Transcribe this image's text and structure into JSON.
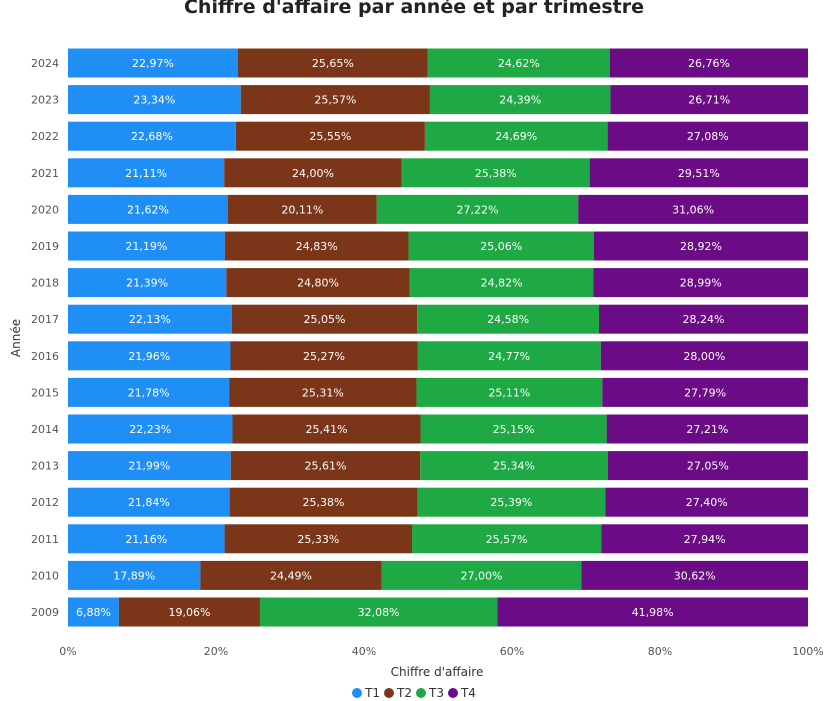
{
  "chart_data": {
    "type": "bar",
    "orientation": "horizontal",
    "stacked": "100%",
    "title": "Chiffre d'affaire par année et par trimestre",
    "xlabel": "Chiffre d'affaire",
    "ylabel": "Année",
    "xlim": [
      0,
      100
    ],
    "x_ticks": [
      "0%",
      "20%",
      "40%",
      "60%",
      "80%",
      "100%"
    ],
    "legend_position": "bottom-center",
    "categories": [
      "2024",
      "2023",
      "2022",
      "2021",
      "2020",
      "2019",
      "2018",
      "2017",
      "2016",
      "2015",
      "2014",
      "2013",
      "2012",
      "2011",
      "2010",
      "2009"
    ],
    "series": [
      {
        "name": "T1",
        "color": "#1f8ff5",
        "values": [
          22.97,
          23.34,
          22.68,
          21.11,
          21.62,
          21.19,
          21.39,
          22.13,
          21.96,
          21.78,
          22.23,
          21.99,
          21.84,
          21.16,
          17.89,
          6.88
        ],
        "labels": [
          "22,97%",
          "23,34%",
          "22,68%",
          "21,11%",
          "21,62%",
          "21,19%",
          "21,39%",
          "22,13%",
          "21,96%",
          "21,78%",
          "22,23%",
          "21,99%",
          "21,84%",
          "21,16%",
          "17,89%",
          "6,88%"
        ]
      },
      {
        "name": "T2",
        "color": "#7b3519",
        "values": [
          25.65,
          25.57,
          25.55,
          24.0,
          20.11,
          24.83,
          24.8,
          25.05,
          25.27,
          25.31,
          25.41,
          25.61,
          25.38,
          25.33,
          24.49,
          19.06
        ],
        "labels": [
          "25,65%",
          "25,57%",
          "25,55%",
          "24,00%",
          "20,11%",
          "24,83%",
          "24,80%",
          "25,05%",
          "25,27%",
          "25,31%",
          "25,41%",
          "25,61%",
          "25,38%",
          "25,33%",
          "24,49%",
          "19,06%"
        ]
      },
      {
        "name": "T3",
        "color": "#1ea944",
        "values": [
          24.62,
          24.39,
          24.69,
          25.38,
          27.22,
          25.06,
          24.82,
          24.58,
          24.77,
          25.11,
          25.15,
          25.34,
          25.39,
          25.57,
          27.0,
          32.08
        ],
        "labels": [
          "24,62%",
          "24,39%",
          "24,69%",
          "25,38%",
          "27,22%",
          "25,06%",
          "24,82%",
          "24,58%",
          "24,77%",
          "25,11%",
          "25,15%",
          "25,34%",
          "25,39%",
          "25,57%",
          "27,00%",
          "32,08%"
        ]
      },
      {
        "name": "T4",
        "color": "#6b0b86",
        "values": [
          26.76,
          26.71,
          27.08,
          29.51,
          31.06,
          28.92,
          28.99,
          28.24,
          28.0,
          27.79,
          27.21,
          27.05,
          27.4,
          27.94,
          30.62,
          41.98
        ],
        "labels": [
          "26,76%",
          "26,71%",
          "27,08%",
          "29,51%",
          "31,06%",
          "28,92%",
          "28,99%",
          "28,24%",
          "28,00%",
          "27,79%",
          "27,21%",
          "27,05%",
          "27,40%",
          "27,94%",
          "30,62%",
          "41,98%"
        ]
      }
    ]
  }
}
